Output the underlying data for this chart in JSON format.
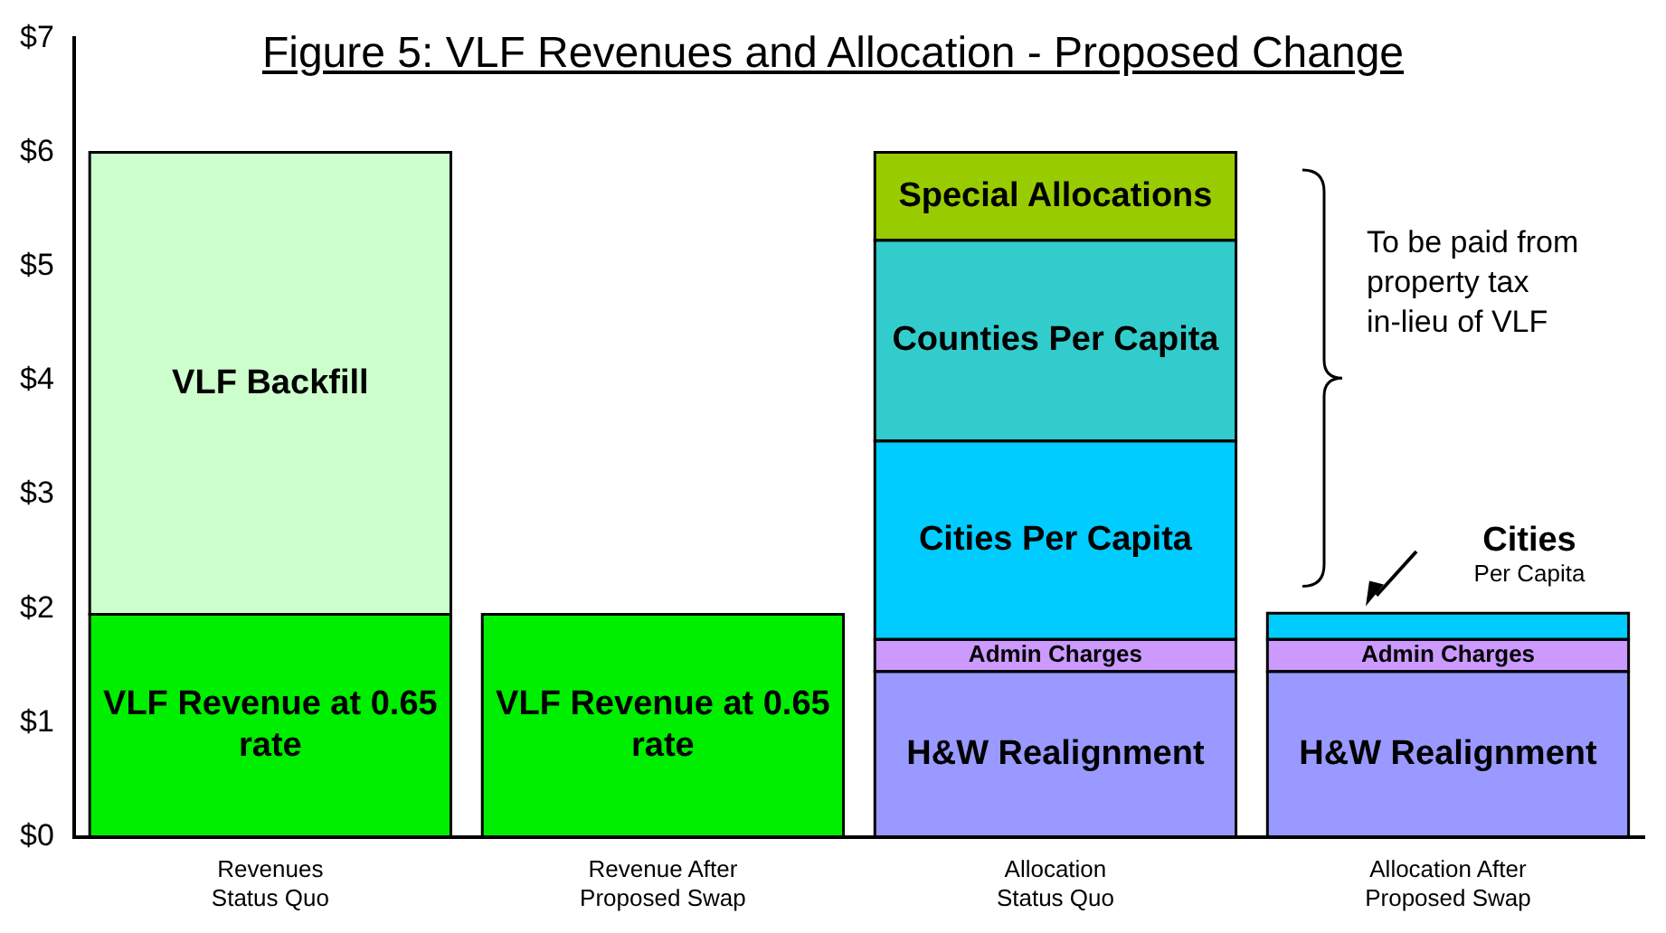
{
  "chart_data": {
    "type": "bar",
    "title": "Figure 5:  VLF Revenues and Allocation - Proposed Change",
    "stacked": true,
    "legend": false,
    "grid": false,
    "categories": [
      "Revenues Status Quo",
      "Revenue After Proposed Swap",
      "Allocation Status Quo",
      "Allocation After Proposed Swap"
    ],
    "series": [
      {
        "name": "VLF Revenue at 0.65 rate",
        "color": "#00ee00",
        "values": [
          1.95,
          1.95,
          null,
          null
        ]
      },
      {
        "name": "VLF Backfill",
        "color": "#ccffcc",
        "values": [
          4.05,
          null,
          null,
          null
        ]
      },
      {
        "name": "H&W Realignment",
        "color": "#9999ff",
        "values": [
          null,
          null,
          1.45,
          1.45
        ]
      },
      {
        "name": "Admin Charges",
        "color": "#cc99ff",
        "values": [
          null,
          null,
          0.28,
          0.28
        ]
      },
      {
        "name": "Cities Per Capita",
        "color": "#00ccff",
        "values": [
          null,
          null,
          1.74,
          0.23
        ]
      },
      {
        "name": "Counties Per Capita",
        "color": "#33cccc",
        "values": [
          null,
          null,
          1.76,
          null
        ]
      },
      {
        "name": "Special Allocations",
        "color": "#99cc00",
        "values": [
          null,
          null,
          0.77,
          null
        ]
      }
    ],
    "ylim": [
      0,
      7
    ],
    "yticks": [
      {
        "value": 0,
        "label": "$0"
      },
      {
        "value": 1,
        "label": "$1"
      },
      {
        "value": 2,
        "label": "$2"
      },
      {
        "value": 3,
        "label": "$3"
      },
      {
        "value": 4,
        "label": "$4"
      },
      {
        "value": 5,
        "label": "$5"
      },
      {
        "value": 6,
        "label": "$6"
      },
      {
        "value": 7,
        "label": "$7"
      }
    ],
    "annotations": [
      "To be paid from property tax in-lieu of VLF",
      {
        "text": "Cities Per Capita",
        "x": "Allocation After Proposed Swap",
        "y": 1.96
      }
    ]
  }
}
